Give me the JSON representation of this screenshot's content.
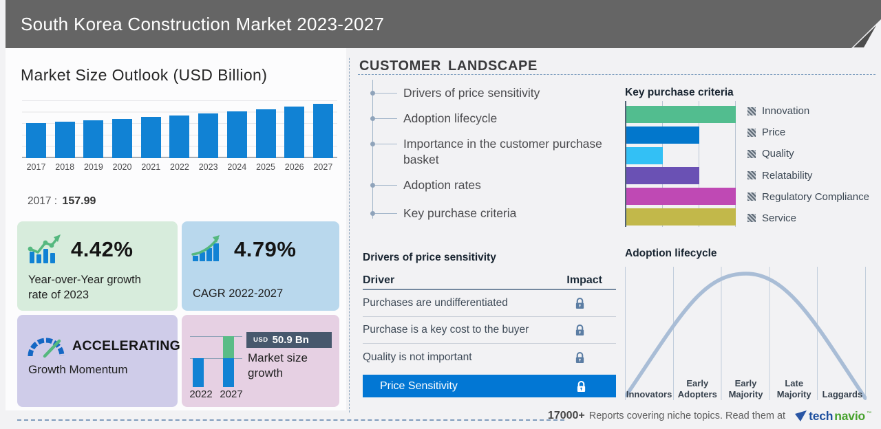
{
  "header": {
    "title": "South Korea Construction Market 2023-2027"
  },
  "market_outlook": {
    "title": "Market Size Outlook (USD Billion)",
    "base_year": "2017",
    "colon": ":",
    "base_value": "157.99"
  },
  "chart_data": [
    {
      "id": "market_size_outlook",
      "type": "bar",
      "title": "Market Size Outlook (USD Billion)",
      "unit": "USD Billion",
      "categories": [
        "2017",
        "2018",
        "2019",
        "2020",
        "2021",
        "2022",
        "2023",
        "2024",
        "2025",
        "2026",
        "2027"
      ],
      "values": [
        157.99,
        164.5,
        171.2,
        177.4,
        184.6,
        193.0,
        201.5,
        210.4,
        219.7,
        231.2,
        243.9
      ],
      "labeled_point": {
        "category": "2017",
        "value": 157.99
      },
      "ylim": [
        0,
        260
      ],
      "grid": true,
      "bar_color": "#1182d4"
    },
    {
      "id": "key_purchase_criteria",
      "type": "bar",
      "orientation": "horizontal",
      "title": "Key purchase criteria",
      "categories": [
        "Innovation",
        "Price",
        "Quality",
        "Relatability",
        "Regulatory Compliance",
        "Service"
      ],
      "values": [
        3,
        2,
        1,
        2,
        3,
        3
      ],
      "colors": [
        "#52bd8f",
        "#0277cc",
        "#33c0f5",
        "#6a51b4",
        "#bf49b4",
        "#c2b84a"
      ],
      "xlim": [
        0,
        3
      ],
      "grid": true,
      "legend_position": "right"
    },
    {
      "id": "adoption_lifecycle",
      "type": "line",
      "title": "Adoption lifecycle",
      "categories": [
        "Innovators",
        "Early Adopters",
        "Early Majority",
        "Late Majority",
        "Laggards"
      ],
      "description": "bell curve peaking at Early Majority",
      "curve_color": "#a9bdd6"
    },
    {
      "id": "market_size_growth",
      "type": "bar",
      "title": "Market size growth",
      "categories": [
        "2022",
        "2027"
      ],
      "series": [
        {
          "name": "base",
          "values": [
            1,
            1
          ],
          "color": "#1182d4"
        },
        {
          "name": "growth 2022-2027",
          "values": [
            0,
            0.76
          ],
          "color": "#5abc87"
        }
      ],
      "badge": "USD 50.9 Bn",
      "growth_usd_bn": 50.9
    }
  ],
  "stats": {
    "yoy": {
      "value": "4.42%",
      "label": "Year-over-Year growth rate of 2023",
      "icon": "bar-chart-trend-icon"
    },
    "cagr": {
      "value": "4.79%",
      "label": "CAGR 2022-2027",
      "icon": "growth-arrow-icon"
    },
    "momentum": {
      "value": "ACCELERATING",
      "label": "Growth Momentum",
      "icon": "speedometer-icon"
    },
    "growth": {
      "currency": "USD",
      "amount": "50.9 Bn",
      "label": "Market size growth"
    }
  },
  "customer_landscape": {
    "title": "CUSTOMER LANDSCAPE",
    "items": [
      "Drivers of price sensitivity",
      "Adoption lifecycle",
      "Importance in the customer purchase basket",
      "Adoption rates",
      "Key purchase criteria"
    ]
  },
  "price_sensitivity": {
    "title": "Drivers of price sensitivity",
    "col_driver": "Driver",
    "col_impact": "Impact",
    "rows": [
      "Purchases are undifferentiated",
      "Purchase is a key cost to the buyer",
      "Quality is not important"
    ],
    "highlighted_row": "Price Sensitivity",
    "impact_icon": "lock-icon"
  },
  "adoption": {
    "title": "Adoption lifecycle"
  },
  "footer": {
    "count": "17000+",
    "message": "Reports covering niche topics. Read them at",
    "logo": {
      "prefix": "tech",
      "suffix": "navio",
      "mark": "™"
    }
  },
  "colors": {
    "header_gray": "#656565",
    "bar_blue": "#1182d4",
    "highlight_blue": "#0277d4",
    "green_accent": "#55b87f",
    "curve_gray_blue": "#a9bdd6",
    "lock_slate": "#5b7da3"
  }
}
